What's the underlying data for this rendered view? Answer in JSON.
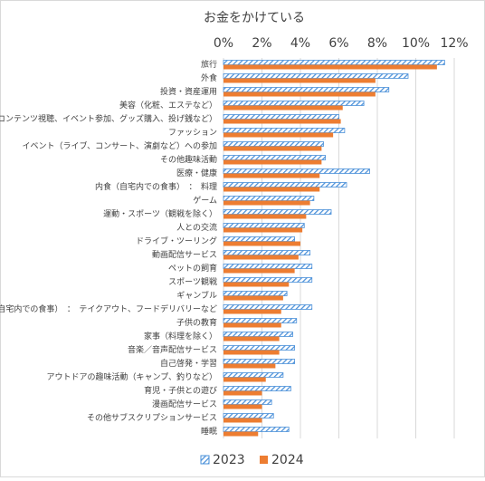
{
  "chart_data": {
    "type": "barh",
    "title": "お金をかけている",
    "categories": [
      "旅行",
      "外食",
      "投資・資産運用",
      "美容（化粧、エステなど）",
      "推し活（コンテンツ視聴、イベント参加、グッズ購入、投げ銭など）",
      "ファッション",
      "イベント（ライブ、コンサート、演劇など）への参加",
      "その他趣味活動",
      "医療・健康",
      "内食（自宅内での食事）　：　料理",
      "ゲーム",
      "運動・スポーツ（観戦を除く）",
      "人との交流",
      "ドライブ・ツーリング",
      "動画配信サービス",
      "ペットの飼育",
      "スポーツ観戦",
      "ギャンブル",
      "内食（自宅内での食事）　：　テイクアウト、フードデリバリーなど",
      "子供の教育",
      "家事（料理を除く）",
      "音楽／音声配信サービス",
      "自己啓発・学習",
      "アウトドアの趣味活動（キャンプ、釣りなど）",
      "育児・子供との遊び",
      "漫画配信サービス",
      "その他サブスクリプションサービス",
      "睡眠"
    ],
    "series": [
      {
        "name": "2023",
        "color": "#4a90d9",
        "hatch": true,
        "values": [
          11.5,
          9.6,
          8.6,
          7.3,
          6.0,
          6.3,
          5.2,
          5.3,
          7.6,
          6.4,
          4.7,
          5.6,
          4.2,
          3.7,
          4.5,
          4.6,
          4.6,
          3.3,
          4.6,
          3.8,
          3.6,
          3.7,
          3.7,
          3.1,
          3.5,
          2.5,
          2.6,
          3.4
        ]
      },
      {
        "name": "2024",
        "color": "#ed7d31",
        "hatch": false,
        "values": [
          11.1,
          7.9,
          7.9,
          6.2,
          6.1,
          5.7,
          5.1,
          5.1,
          5.0,
          5.0,
          4.5,
          4.3,
          4.1,
          4.0,
          3.9,
          3.7,
          3.4,
          3.1,
          3.0,
          3.0,
          2.9,
          2.9,
          2.7,
          2.2,
          2.0,
          2.0,
          2.0,
          1.8
        ]
      }
    ],
    "xlim": [
      0,
      12
    ],
    "xticks": [
      {
        "value": 0,
        "label": "0%"
      },
      {
        "value": 2,
        "label": "2%"
      },
      {
        "value": 4,
        "label": "4%"
      },
      {
        "value": 6,
        "label": "6%"
      },
      {
        "value": 8,
        "label": "8%"
      },
      {
        "value": 10,
        "label": "10%"
      },
      {
        "value": 12,
        "label": "12%"
      }
    ],
    "grid": true,
    "legend": "bottom"
  }
}
